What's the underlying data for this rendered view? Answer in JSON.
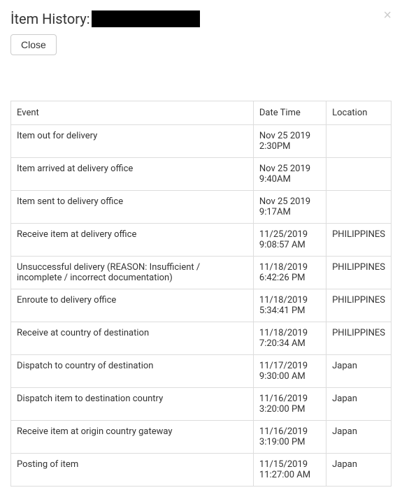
{
  "header": {
    "title_label": "İtem History:",
    "close_button_label": "Close",
    "close_x": "×"
  },
  "table": {
    "columns": {
      "event": "Event",
      "datetime": "Date Time",
      "location": "Location"
    },
    "rows": [
      {
        "event": "Item out for delivery",
        "datetime": "Nov 25 2019 2:30PM",
        "location": ""
      },
      {
        "event": "Item arrived at delivery office",
        "datetime": "Nov 25 2019 9:40AM",
        "location": ""
      },
      {
        "event": "Item sent to delivery office",
        "datetime": "Nov 25 2019 9:17AM",
        "location": ""
      },
      {
        "event": "Receive item at delivery office",
        "datetime": "11/25/2019 9:08:57 AM",
        "location": "PHILIPPINES"
      },
      {
        "event": "Unsuccessful delivery (REASON: Insufficient / incomplete / incorrect documentation)",
        "datetime": "11/18/2019 6:42:26 PM",
        "location": "PHILIPPINES"
      },
      {
        "event": "Enroute to delivery office",
        "datetime": "11/18/2019 5:34:41 PM",
        "location": "PHILIPPINES"
      },
      {
        "event": "Receive at country of destination",
        "datetime": "11/18/2019 7:20:34 AM",
        "location": "PHILIPPINES"
      },
      {
        "event": "Dispatch to country of destination",
        "datetime": "11/17/2019 9:30:00 AM",
        "location": "Japan"
      },
      {
        "event": "Dispatch item to destination country",
        "datetime": "11/16/2019 3:20:00 PM",
        "location": "Japan"
      },
      {
        "event": "Receive item at origin country gateway",
        "datetime": "11/16/2019 3:19:00 PM",
        "location": "Japan"
      },
      {
        "event": "Posting of item",
        "datetime": "11/15/2019 11:27:00 AM",
        "location": "Japan"
      }
    ]
  }
}
